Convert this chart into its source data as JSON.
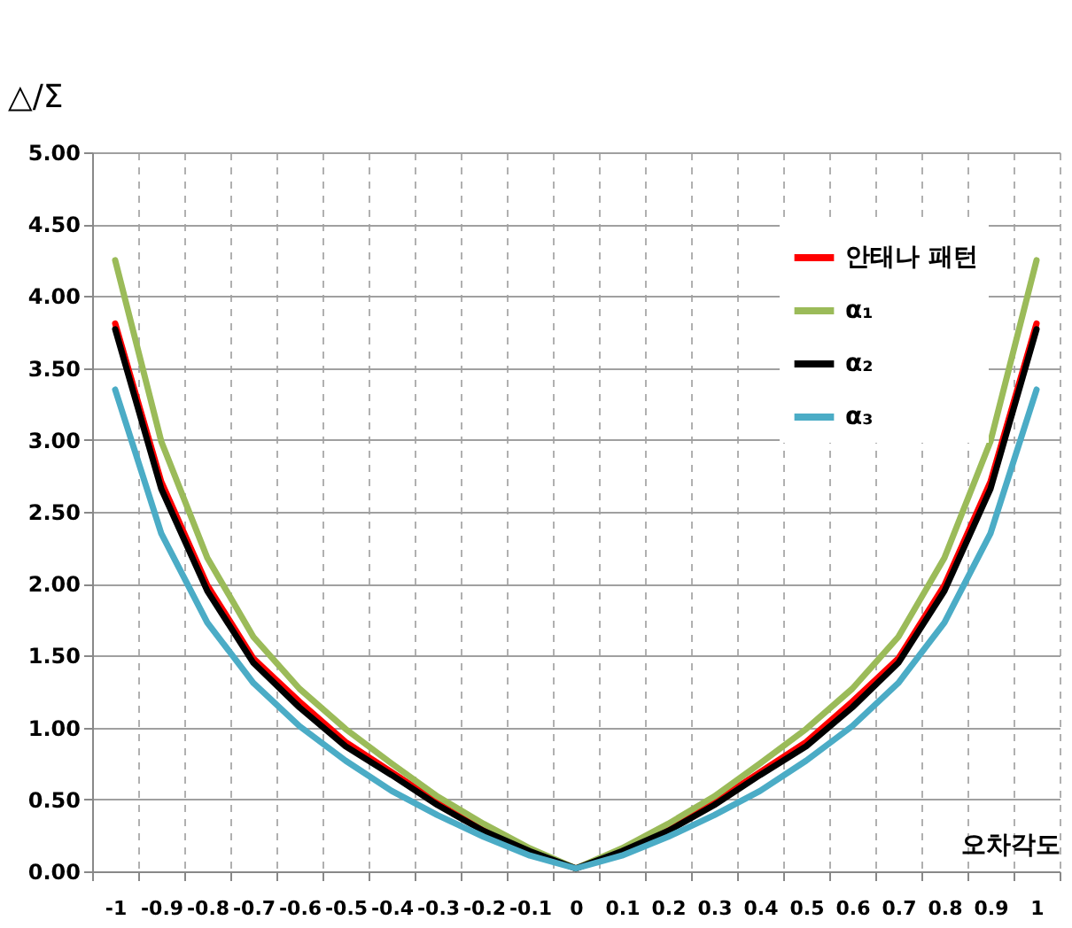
{
  "chart_data": {
    "type": "line",
    "ylabel": "△/Σ",
    "xlabel": "오차각도",
    "categories": [
      "-1",
      "-0.9",
      "-0.8",
      "-0.7",
      "-0.6",
      "-0.5",
      "-0.4",
      "-0.3",
      "-0.2",
      "-0.1",
      "0",
      "0.1",
      "0.2",
      "0.3",
      "0.4",
      "0.5",
      "0.6",
      "0.7",
      "0.8",
      "0.9",
      "1"
    ],
    "series": [
      {
        "name": "안태나 패턴",
        "color": "#ff0000",
        "values": [
          3.81,
          2.71,
          1.99,
          1.48,
          1.18,
          0.9,
          0.69,
          0.48,
          0.29,
          0.14,
          0.02,
          0.14,
          0.29,
          0.48,
          0.69,
          0.9,
          1.18,
          1.48,
          1.99,
          2.71,
          3.81
        ]
      },
      {
        "name": "α₁",
        "color": "#9bbb59",
        "values": [
          4.25,
          2.99,
          2.18,
          1.63,
          1.27,
          0.99,
          0.75,
          0.52,
          0.33,
          0.16,
          0.02,
          0.16,
          0.33,
          0.52,
          0.75,
          0.99,
          1.27,
          1.63,
          2.18,
          2.99,
          4.25
        ]
      },
      {
        "name": "α₂",
        "color": "#000000",
        "values": [
          3.77,
          2.66,
          1.95,
          1.45,
          1.14,
          0.87,
          0.67,
          0.46,
          0.28,
          0.14,
          0.02,
          0.14,
          0.28,
          0.46,
          0.67,
          0.87,
          1.14,
          1.45,
          1.95,
          2.66,
          3.77
        ]
      },
      {
        "name": "α₃",
        "color": "#4bacc6",
        "values": [
          3.35,
          2.35,
          1.73,
          1.31,
          1.01,
          0.77,
          0.56,
          0.39,
          0.24,
          0.11,
          0.02,
          0.11,
          0.24,
          0.39,
          0.56,
          0.77,
          1.01,
          1.31,
          1.73,
          2.35,
          3.35
        ]
      }
    ],
    "ylim": [
      0,
      5
    ],
    "yticks": [
      {
        "value": 0,
        "label": "0.00"
      },
      {
        "value": 0.5,
        "label": "0.50"
      },
      {
        "value": 1,
        "label": "1.00"
      },
      {
        "value": 1.5,
        "label": "1.50"
      },
      {
        "value": 2,
        "label": "2.00"
      },
      {
        "value": 2.5,
        "label": "2.50"
      },
      {
        "value": 3,
        "label": "3.00"
      },
      {
        "value": 3.5,
        "label": "3.50"
      },
      {
        "value": 4,
        "label": "4.00"
      },
      {
        "value": 4.5,
        "label": "4.50"
      },
      {
        "value": 5,
        "label": "5.00"
      }
    ],
    "grid": true,
    "legend": "top right",
    "line_style": "solid"
  }
}
